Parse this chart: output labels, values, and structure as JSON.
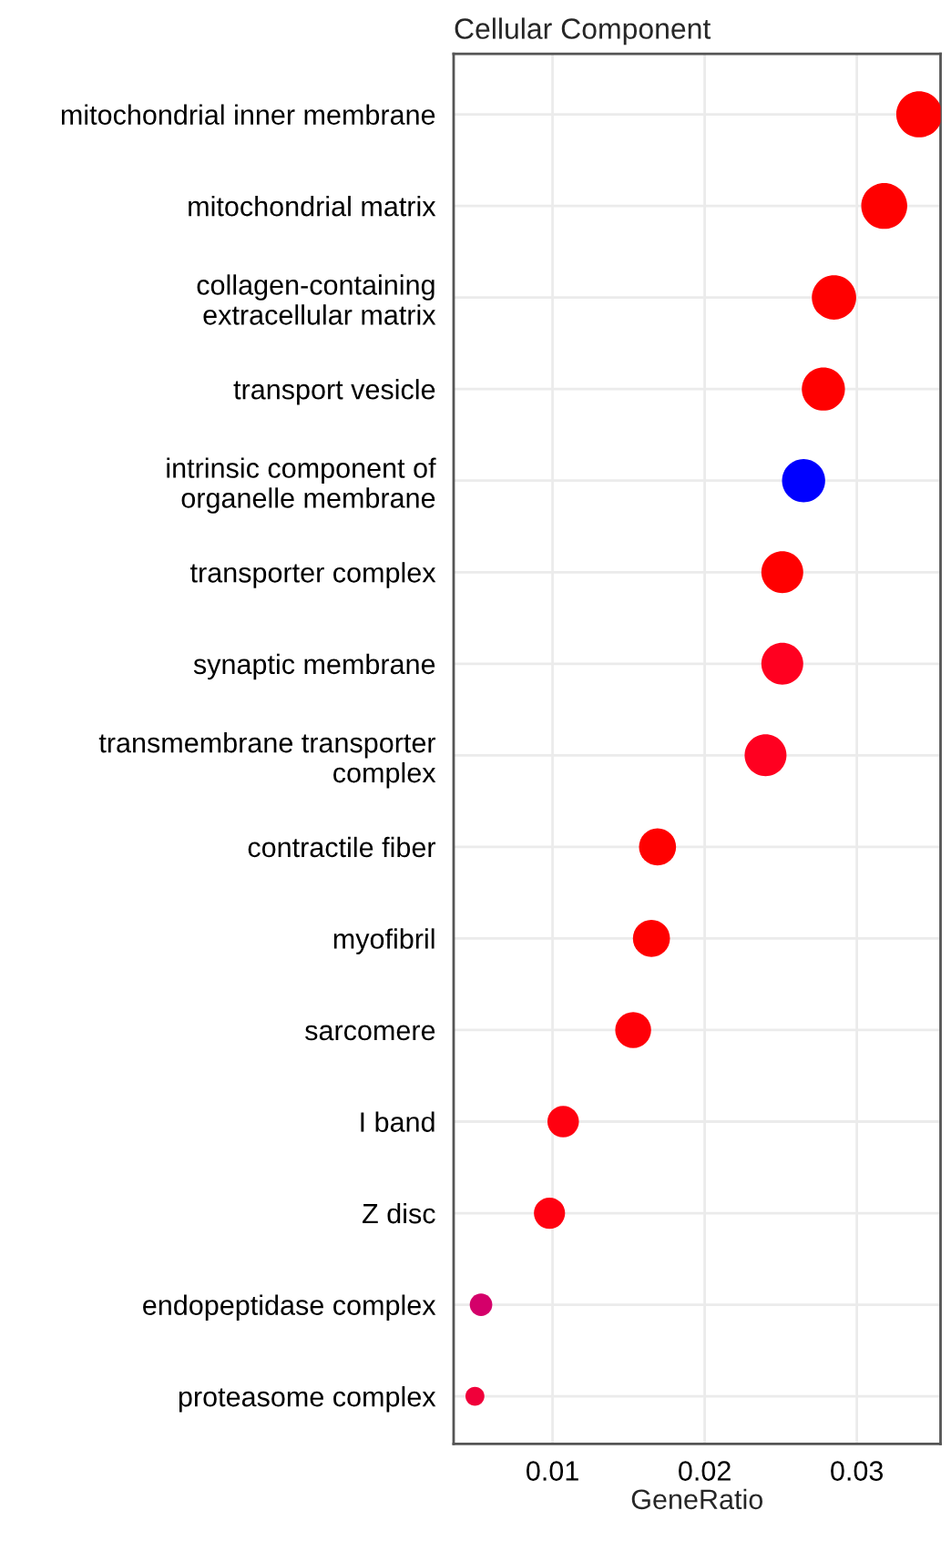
{
  "chart_data": {
    "type": "bubble",
    "title": "Cellular Component",
    "xlabel": "GeneRatio",
    "orientation": "horizontal",
    "categories": [
      "mitochondrial inner membrane",
      "mitochondrial matrix",
      "collagen-containing\nextracellular matrix",
      "transport vesicle",
      "intrinsic component of\norganelle membrane",
      "transporter complex",
      "synaptic membrane",
      "transmembrane transporter\ncomplex",
      "contractile fiber",
      "myofibril",
      "sarcomere",
      "I band",
      "Z disc",
      "endopeptidase complex",
      "proteasome complex"
    ],
    "values": [
      0.0341,
      0.0318,
      0.0285,
      0.0278,
      0.0265,
      0.0251,
      0.0251,
      0.024,
      0.0169,
      0.0165,
      0.0153,
      0.0107,
      0.0098,
      0.0053,
      0.0049
    ],
    "sizes": [
      1,
      1,
      0.93,
      0.88,
      0.88,
      0.83,
      0.83,
      0.83,
      0.65,
      0.65,
      0.61,
      0.47,
      0.46,
      0.24,
      0.17
    ],
    "colors": [
      "#ff0000",
      "#ff0000",
      "#ff0000",
      "#ff0000",
      "#0000ff",
      "#ff0000",
      "#ff0020",
      "#ff0020",
      "#ff0000",
      "#ff0000",
      "#ff0008",
      "#ff0010",
      "#ff0010",
      "#d4006a",
      "#f0003a"
    ],
    "xlim": [
      0.0035,
      0.0355
    ],
    "xticks": [
      0.01,
      0.02,
      0.03
    ],
    "grid": true,
    "marker": "circle"
  }
}
